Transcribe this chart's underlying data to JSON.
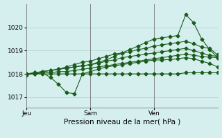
{
  "bg_color": "#d5eeee",
  "grid_color": "#b8d8d8",
  "line_color": "#1a5c1a",
  "marker_color": "#1a5c1a",
  "xlabel": "Pression niveau de la mer( hPa )",
  "xlabel_fontsize": 7.5,
  "ylim": [
    1016.55,
    1021.0
  ],
  "yticks": [
    1017,
    1018,
    1019,
    1020
  ],
  "xtick_labels": [
    "Jeu",
    "Sam",
    "Ven"
  ],
  "xtick_positions": [
    0,
    8,
    16
  ],
  "total_points": 25,
  "series": [
    [
      1017.95,
      1018.05,
      1018.1,
      1018.15,
      1018.2,
      1018.25,
      1018.3,
      1018.35,
      1018.4,
      1018.5,
      1018.6,
      1018.75,
      1018.9,
      1019.05,
      1019.2,
      1019.35,
      1019.5,
      1019.55,
      1019.6,
      1019.65,
      1020.55,
      1020.2,
      1019.5,
      1019.05,
      1018.7
    ],
    [
      1018.0,
      1018.05,
      1018.1,
      1018.15,
      1018.2,
      1018.3,
      1018.4,
      1018.5,
      1018.55,
      1018.65,
      1018.75,
      1018.85,
      1018.9,
      1018.95,
      1019.05,
      1019.1,
      1019.2,
      1019.25,
      1019.3,
      1019.35,
      1019.4,
      1019.3,
      1019.15,
      1019.1,
      1018.82
    ],
    [
      1018.0,
      1018.05,
      1018.1,
      1018.15,
      1018.2,
      1018.25,
      1018.3,
      1018.35,
      1018.4,
      1018.45,
      1018.55,
      1018.6,
      1018.7,
      1018.75,
      1018.8,
      1018.85,
      1018.9,
      1018.95,
      1019.0,
      1019.05,
      1019.1,
      1019.0,
      1018.9,
      1018.8,
      1018.75
    ],
    [
      1018.0,
      1018.0,
      1018.05,
      1018.05,
      1018.1,
      1018.1,
      1018.15,
      1018.2,
      1018.25,
      1018.3,
      1018.35,
      1018.4,
      1018.45,
      1018.5,
      1018.55,
      1018.6,
      1018.65,
      1018.7,
      1018.75,
      1018.8,
      1018.85,
      1018.8,
      1018.75,
      1018.72,
      1018.7
    ],
    [
      1018.0,
      1018.0,
      1018.05,
      1017.85,
      1017.55,
      1017.2,
      1017.15,
      1018.0,
      1018.1,
      1018.2,
      1018.3,
      1018.35,
      1018.4,
      1018.45,
      1018.5,
      1018.55,
      1018.6,
      1018.6,
      1018.62,
      1018.65,
      1018.7,
      1018.65,
      1018.55,
      1018.45,
      1018.3
    ],
    [
      1018.0,
      1018.0,
      1018.0,
      1018.0,
      1018.0,
      1018.0,
      1018.0,
      1018.0,
      1018.0,
      1018.0,
      1018.0,
      1018.0,
      1018.0,
      1018.0,
      1018.0,
      1018.0,
      1018.0,
      1018.0,
      1018.0,
      1018.0,
      1018.05,
      1018.05,
      1018.05,
      1018.05,
      1018.05
    ]
  ],
  "marker_size": 2.5,
  "line_width": 0.8
}
